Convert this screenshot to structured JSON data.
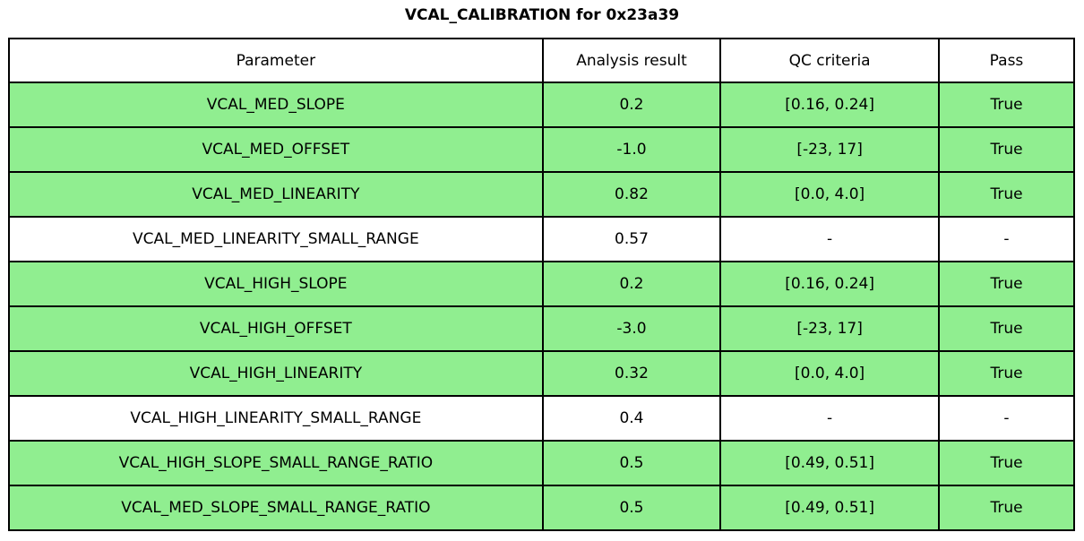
{
  "title": "VCAL_CALIBRATION for 0x23a39",
  "colors": {
    "pass_row_green": "#90ee90",
    "neutral_row_white": "#ffffff",
    "border_black": "#000000",
    "text_black": "#000000"
  },
  "table": {
    "headers": [
      "Parameter",
      "Analysis result",
      "QC criteria",
      "Pass"
    ],
    "rows": [
      {
        "parameter": "VCAL_MED_SLOPE",
        "analysis_result": "0.2",
        "qc_criteria": "[0.16, 0.24]",
        "pass": "True",
        "highlighted": true
      },
      {
        "parameter": "VCAL_MED_OFFSET",
        "analysis_result": "-1.0",
        "qc_criteria": "[-23, 17]",
        "pass": "True",
        "highlighted": true
      },
      {
        "parameter": "VCAL_MED_LINEARITY",
        "analysis_result": "0.82",
        "qc_criteria": "[0.0, 4.0]",
        "pass": "True",
        "highlighted": true
      },
      {
        "parameter": "VCAL_MED_LINEARITY_SMALL_RANGE",
        "analysis_result": "0.57",
        "qc_criteria": "-",
        "pass": "-",
        "highlighted": false
      },
      {
        "parameter": "VCAL_HIGH_SLOPE",
        "analysis_result": "0.2",
        "qc_criteria": "[0.16, 0.24]",
        "pass": "True",
        "highlighted": true
      },
      {
        "parameter": "VCAL_HIGH_OFFSET",
        "analysis_result": "-3.0",
        "qc_criteria": "[-23, 17]",
        "pass": "True",
        "highlighted": true
      },
      {
        "parameter": "VCAL_HIGH_LINEARITY",
        "analysis_result": "0.32",
        "qc_criteria": "[0.0, 4.0]",
        "pass": "True",
        "highlighted": true
      },
      {
        "parameter": "VCAL_HIGH_LINEARITY_SMALL_RANGE",
        "analysis_result": "0.4",
        "qc_criteria": "-",
        "pass": "-",
        "highlighted": false
      },
      {
        "parameter": "VCAL_HIGH_SLOPE_SMALL_RANGE_RATIO",
        "analysis_result": "0.5",
        "qc_criteria": "[0.49, 0.51]",
        "pass": "True",
        "highlighted": true
      },
      {
        "parameter": "VCAL_MED_SLOPE_SMALL_RANGE_RATIO",
        "analysis_result": "0.5",
        "qc_criteria": "[0.49, 0.51]",
        "pass": "True",
        "highlighted": true
      }
    ]
  }
}
